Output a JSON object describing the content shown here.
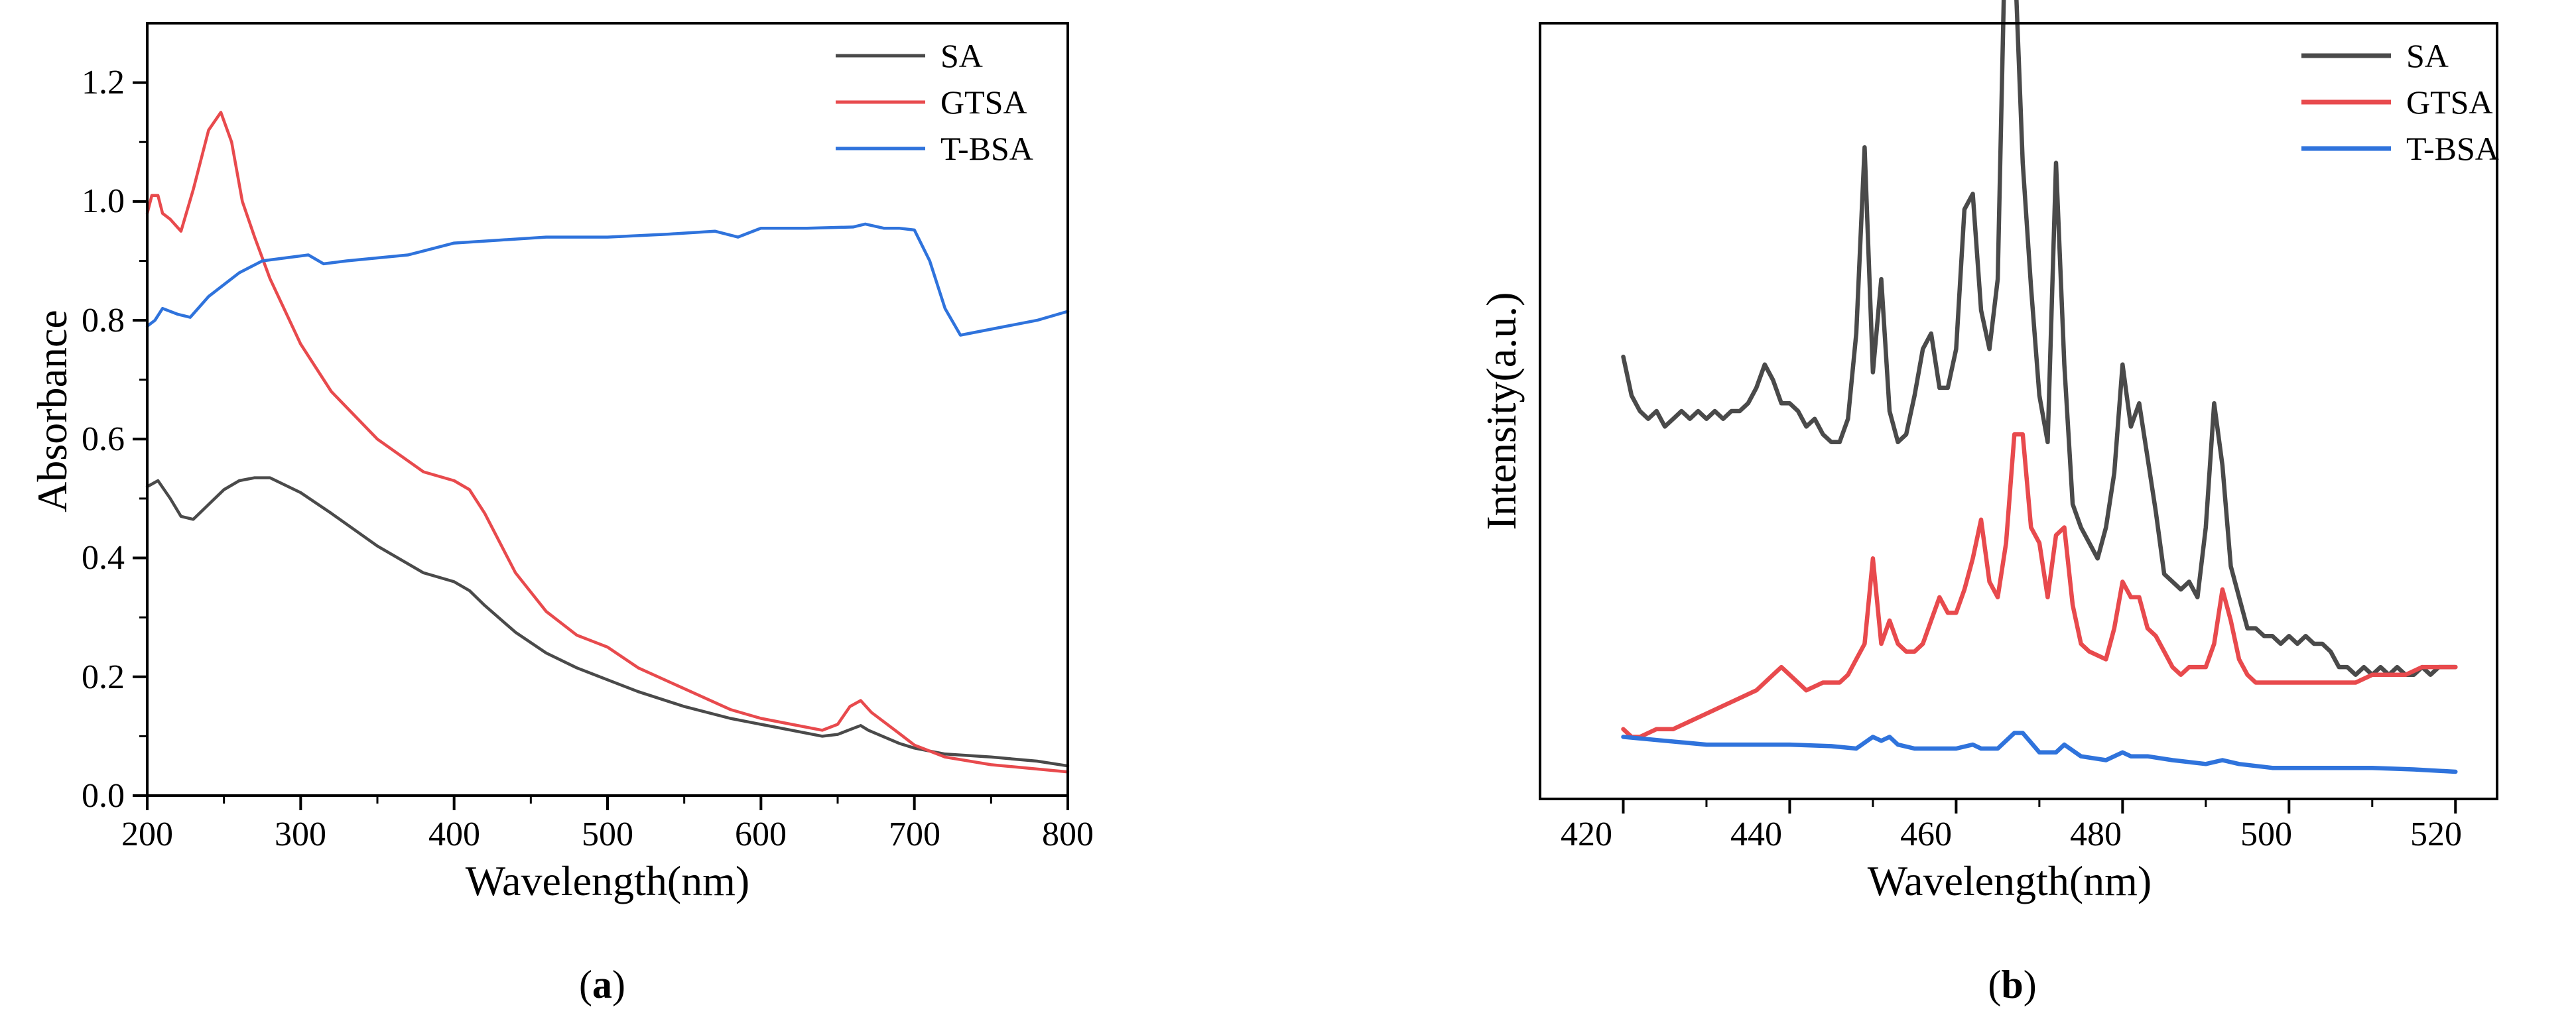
{
  "colors": {
    "SA": "#4a4a4a",
    "GTSA": "#e84a4d",
    "T-BSA": "#2f73dc",
    "axis": "#000000"
  },
  "chart_data": [
    {
      "panel": "a",
      "caption": {
        "open": "(",
        "letter": "a",
        "close": ")"
      },
      "type": "line",
      "title": "",
      "xlabel": "Wavelength(nm)",
      "ylabel": "Absorbance",
      "xlim": [
        200,
        800
      ],
      "ylim": [
        0,
        1.3
      ],
      "xticks": [
        200,
        300,
        400,
        500,
        600,
        700,
        800
      ],
      "yticks": [
        0.0,
        0.2,
        0.4,
        0.6,
        0.8,
        1.0,
        1.2
      ],
      "xtick_labels": [
        "200",
        "300",
        "400",
        "500",
        "600",
        "700",
        "800"
      ],
      "ytick_labels": [
        "0.0",
        "0.2",
        "0.4",
        "0.6",
        "0.8",
        "1.0",
        "1.2"
      ],
      "legend": "top-right",
      "grid": false,
      "series": [
        {
          "name": "SA",
          "x": [
            200,
            207,
            215,
            222,
            230,
            240,
            250,
            260,
            270,
            280,
            300,
            320,
            350,
            380,
            400,
            410,
            420,
            440,
            460,
            480,
            500,
            520,
            550,
            580,
            600,
            620,
            640,
            650,
            660,
            665,
            670,
            690,
            700,
            720,
            750,
            780,
            800
          ],
          "y": [
            0.52,
            0.53,
            0.5,
            0.47,
            0.465,
            0.49,
            0.515,
            0.53,
            0.535,
            0.535,
            0.51,
            0.475,
            0.42,
            0.375,
            0.36,
            0.345,
            0.32,
            0.275,
            0.24,
            0.215,
            0.195,
            0.175,
            0.15,
            0.13,
            0.12,
            0.11,
            0.1,
            0.103,
            0.113,
            0.118,
            0.11,
            0.088,
            0.08,
            0.07,
            0.065,
            0.058,
            0.05
          ]
        },
        {
          "name": "GTSA",
          "x": [
            200,
            203,
            207,
            210,
            215,
            222,
            230,
            240,
            248,
            255,
            262,
            270,
            280,
            300,
            320,
            350,
            380,
            400,
            410,
            420,
            440,
            460,
            480,
            500,
            520,
            550,
            580,
            600,
            620,
            640,
            650,
            658,
            665,
            672,
            690,
            700,
            720,
            750,
            800
          ],
          "y": [
            0.98,
            1.01,
            1.01,
            0.98,
            0.97,
            0.95,
            1.02,
            1.12,
            1.15,
            1.1,
            1.0,
            0.94,
            0.87,
            0.76,
            0.68,
            0.6,
            0.545,
            0.53,
            0.515,
            0.475,
            0.375,
            0.31,
            0.27,
            0.25,
            0.215,
            0.18,
            0.145,
            0.13,
            0.12,
            0.11,
            0.12,
            0.15,
            0.16,
            0.14,
            0.105,
            0.085,
            0.065,
            0.052,
            0.04
          ]
        },
        {
          "name": "T-BSA",
          "x": [
            200,
            205,
            210,
            220,
            228,
            240,
            260,
            275,
            290,
            305,
            315,
            330,
            350,
            370,
            400,
            430,
            460,
            480,
            500,
            540,
            570,
            585,
            600,
            630,
            660,
            668,
            680,
            690,
            700,
            710,
            720,
            730,
            740,
            760,
            780,
            800
          ],
          "y": [
            0.79,
            0.8,
            0.82,
            0.81,
            0.805,
            0.84,
            0.88,
            0.9,
            0.905,
            0.91,
            0.895,
            0.9,
            0.905,
            0.91,
            0.93,
            0.935,
            0.94,
            0.94,
            0.94,
            0.945,
            0.95,
            0.94,
            0.955,
            0.955,
            0.957,
            0.962,
            0.955,
            0.955,
            0.952,
            0.9,
            0.82,
            0.775,
            0.78,
            0.79,
            0.8,
            0.815
          ]
        }
      ]
    },
    {
      "panel": "b",
      "caption": {
        "open": "(",
        "letter": "b",
        "close": ")"
      },
      "type": "line",
      "title": "",
      "xlabel": "Wavelength(nm)",
      "ylabel": "Intensity(a.u.)",
      "xlim": [
        410,
        525
      ],
      "ylim": [
        0,
        100
      ],
      "xticks": [
        420,
        440,
        460,
        480,
        500,
        520
      ],
      "xtick_labels": [
        "420",
        "440",
        "460",
        "480",
        "500",
        "520"
      ],
      "yticks": [],
      "legend": "top-right",
      "grid": false,
      "series": [
        {
          "name": "SA",
          "x": [
            420,
            421,
            422,
            423,
            424,
            425,
            426,
            427,
            428,
            429,
            430,
            431,
            432,
            433,
            434,
            435,
            436,
            437,
            438,
            439,
            440,
            441,
            442,
            443,
            444,
            445,
            446,
            447,
            448,
            449,
            450,
            451,
            452,
            453,
            454,
            455,
            456,
            457,
            458,
            459,
            460,
            461,
            462,
            463,
            464,
            465,
            466,
            467,
            468,
            469,
            470,
            471,
            472,
            473,
            474,
            475,
            476,
            477,
            478,
            479,
            480,
            481,
            482,
            483,
            484,
            485,
            486,
            487,
            488,
            489,
            490,
            491,
            492,
            493,
            494,
            495,
            496,
            497,
            498,
            499,
            500,
            501,
            502,
            503,
            504,
            505,
            506,
            507,
            508,
            509,
            510,
            511,
            512,
            513,
            514,
            515,
            516,
            517,
            518,
            519,
            520
          ],
          "y": [
            57,
            52,
            50,
            49,
            50,
            48,
            49,
            50,
            49,
            50,
            49,
            50,
            49,
            50,
            50,
            51,
            53,
            56,
            54,
            51,
            51,
            50,
            48,
            49,
            47,
            46,
            46,
            49,
            60,
            84,
            55,
            67,
            50,
            46,
            47,
            52,
            58,
            60,
            53,
            53,
            58,
            76,
            78,
            63,
            58,
            67,
            117,
            110,
            82,
            66,
            52,
            46,
            82,
            56,
            38,
            35,
            33,
            31,
            35,
            42,
            56,
            48,
            51,
            44,
            37,
            29,
            28,
            27,
            28,
            26,
            35,
            51,
            43,
            30,
            26,
            22,
            22,
            21,
            21,
            20,
            21,
            20,
            21,
            20,
            20,
            19,
            17,
            17,
            16,
            17,
            16,
            17,
            16,
            17,
            16,
            16,
            17,
            16,
            17,
            17,
            17
          ]
        },
        {
          "name": "GTSA",
          "x": [
            420,
            421,
            422,
            424,
            426,
            428,
            430,
            432,
            434,
            436,
            437,
            438,
            439,
            440,
            441,
            442,
            444,
            446,
            447,
            448,
            449,
            450,
            451,
            452,
            453,
            454,
            455,
            456,
            457,
            458,
            459,
            460,
            461,
            462,
            463,
            464,
            465,
            466,
            467,
            468,
            469,
            470,
            471,
            472,
            473,
            474,
            475,
            476,
            478,
            479,
            480,
            481,
            482,
            483,
            484,
            485,
            486,
            487,
            488,
            490,
            491,
            492,
            493,
            494,
            495,
            496,
            498,
            500,
            502,
            504,
            506,
            508,
            510,
            512,
            514,
            516,
            518,
            520
          ],
          "y": [
            9,
            8,
            8,
            9,
            9,
            10,
            11,
            12,
            13,
            14,
            15,
            16,
            17,
            16,
            15,
            14,
            15,
            15,
            16,
            18,
            20,
            31,
            20,
            23,
            20,
            19,
            19,
            20,
            23,
            26,
            24,
            24,
            27,
            31,
            36,
            28,
            26,
            33,
            47,
            47,
            35,
            33,
            26,
            34,
            35,
            25,
            20,
            19,
            18,
            22,
            28,
            26,
            26,
            22,
            21,
            19,
            17,
            16,
            17,
            17,
            20,
            27,
            23,
            18,
            16,
            15,
            15,
            15,
            15,
            15,
            15,
            15,
            16,
            16,
            16,
            17,
            17,
            17
          ]
        },
        {
          "name": "T-BSA",
          "x": [
            420,
            425,
            430,
            435,
            440,
            445,
            448,
            450,
            451,
            452,
            453,
            455,
            458,
            460,
            462,
            463,
            465,
            467,
            468,
            470,
            472,
            473,
            475,
            478,
            480,
            481,
            483,
            486,
            490,
            492,
            494,
            498,
            502,
            506,
            510,
            515,
            520
          ],
          "y": [
            8,
            7.5,
            7,
            7,
            7,
            6.8,
            6.5,
            8,
            7.5,
            8,
            7,
            6.5,
            6.5,
            6.5,
            7,
            6.5,
            6.5,
            8.5,
            8.5,
            6,
            6,
            7,
            5.5,
            5,
            6,
            5.5,
            5.5,
            5,
            4.5,
            5,
            4.5,
            4,
            4,
            4,
            4,
            3.8,
            3.5
          ]
        }
      ]
    }
  ]
}
